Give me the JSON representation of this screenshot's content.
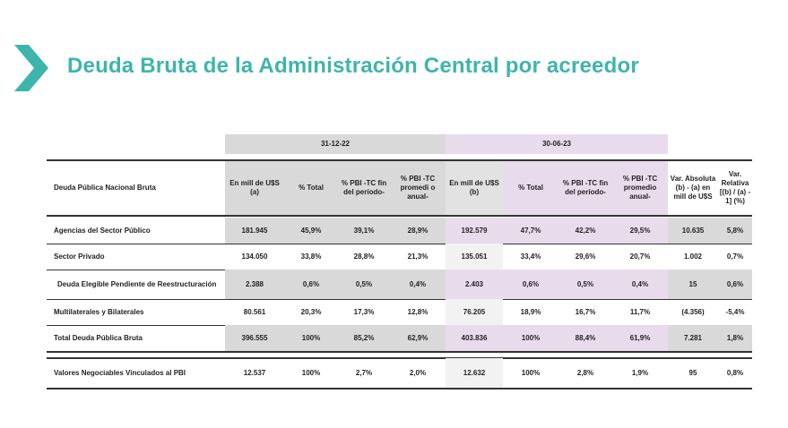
{
  "title": "Deuda Bruta de la Administración Central por acreedor",
  "periods": {
    "p1": "31-12-22",
    "p2": "30-06-23"
  },
  "headers": {
    "label": "Deuda Pública Nacional Bruta",
    "p1_amount": "En mill de U$S (a)",
    "p1_pct_total": "% Total",
    "p1_pbi_fin": "% PBI -TC fin del período-",
    "p1_pbi_prom": "% PBI -TC promedi o anual-",
    "p2_amount": "En mill de U$S (b)",
    "p2_pct_total": "% Total",
    "p2_pbi_fin": "% PBI -TC fin del período-",
    "p2_pbi_prom": "% PBI -TC promedio anual-",
    "var_abs": "Var. Absoluta (b) - (a) en mill de U$S",
    "var_rel": "Var. Relativa [(b) / (a) - 1] (%)"
  },
  "rows": [
    {
      "label": "Agencias del Sector Público",
      "v": [
        "181.945",
        "45,9%",
        "39,1%",
        "28,9%",
        "192.579",
        "47,7%",
        "42,2%",
        "29,5%",
        "10.635",
        "5,8%"
      ]
    },
    {
      "label": "Sector Privado",
      "v": [
        "134.050",
        "33,8%",
        "28,8%",
        "21,3%",
        "135.051",
        "33,4%",
        "29,6%",
        "20,7%",
        "1.002",
        "0,7%"
      ]
    },
    {
      "label": "Deuda Elegible Pendiente de Reestructuración",
      "v": [
        "2.388",
        "0,6%",
        "0,5%",
        "0,4%",
        "2.403",
        "0,6%",
        "0,5%",
        "0,4%",
        "15",
        "0,6%"
      ]
    },
    {
      "label": "Multilaterales y Bilaterales",
      "v": [
        "80.561",
        "20,3%",
        "17,3%",
        "12,8%",
        "76.205",
        "18,9%",
        "16,7%",
        "11,7%",
        "(4.356)",
        "-5,4%"
      ]
    },
    {
      "label": "Total Deuda Pública Bruta",
      "v": [
        "396.555",
        "100%",
        "85,2%",
        "62,9%",
        "403.836",
        "100%",
        "88,4%",
        "61,9%",
        "7.281",
        "1,8%"
      ]
    },
    {
      "label": "Valores Negociables Vinculados al PBI",
      "v": [
        "12.537",
        "100%",
        "2,7%",
        "2,0%",
        "12.632",
        "100%",
        "2,8%",
        "1,9%",
        "95",
        "0,8%"
      ]
    }
  ],
  "colors": {
    "title": "#3eb5ac",
    "gray": "#d9d9d9",
    "purple": "#e8dcec"
  }
}
